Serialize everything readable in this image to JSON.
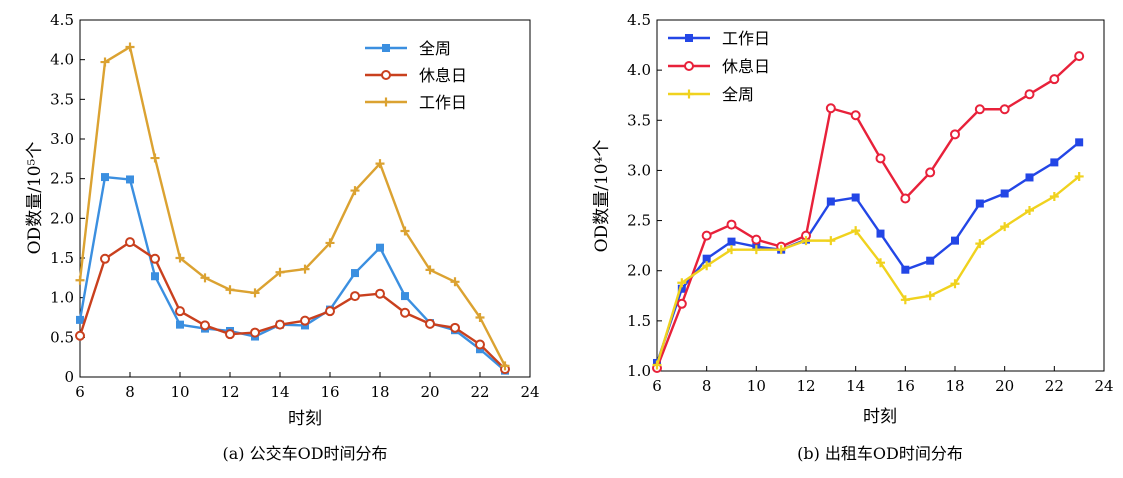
{
  "chart_data": [
    {
      "id": "a",
      "type": "line",
      "title": "",
      "caption": "(a) 公交车OD时间分布",
      "xlabel": "时刻",
      "ylabel": "OD数量/10⁵个",
      "xlim": [
        6,
        24
      ],
      "ylim": [
        0,
        4.5
      ],
      "xticks": [
        "6",
        "8",
        "10",
        "12",
        "14",
        "16",
        "18",
        "20",
        "22",
        "24"
      ],
      "yticks": [
        "0",
        "0.5",
        "1.0",
        "1.5",
        "2.0",
        "2.5",
        "3.0",
        "3.5",
        "4.0",
        "4.5"
      ],
      "grid": false,
      "legend_position": "top-right",
      "x": [
        6,
        7,
        8,
        9,
        10,
        11,
        12,
        13,
        14,
        15,
        16,
        17,
        18,
        19,
        20,
        21,
        22,
        23
      ],
      "series": [
        {
          "name": "全周",
          "color": "#3b8fe0",
          "marker": "square",
          "values": [
            0.72,
            2.52,
            2.49,
            1.27,
            0.66,
            0.61,
            0.58,
            0.51,
            0.66,
            0.65,
            0.85,
            1.31,
            1.63,
            1.02,
            0.68,
            0.59,
            0.35,
            0.08
          ]
        },
        {
          "name": "休息日",
          "color": "#c9401e",
          "marker": "circle",
          "values": [
            0.52,
            1.49,
            1.7,
            1.49,
            0.83,
            0.65,
            0.54,
            0.56,
            0.66,
            0.71,
            0.83,
            1.02,
            1.05,
            0.81,
            0.67,
            0.62,
            0.41,
            0.1
          ]
        },
        {
          "name": "工作日",
          "color": "#dba231",
          "marker": "plus",
          "values": [
            1.22,
            3.97,
            4.16,
            2.76,
            1.5,
            1.25,
            1.1,
            1.06,
            1.32,
            1.36,
            1.69,
            2.35,
            2.69,
            1.84,
            1.35,
            1.2,
            0.75,
            0.14
          ]
        }
      ]
    },
    {
      "id": "b",
      "type": "line",
      "title": "",
      "caption": "(b) 出租车OD时间分布",
      "xlabel": "时刻",
      "ylabel": "OD数量/10⁴个",
      "xlim": [
        6,
        24
      ],
      "ylim": [
        1.0,
        4.5
      ],
      "xticks": [
        "6",
        "8",
        "10",
        "12",
        "14",
        "16",
        "18",
        "20",
        "22",
        "24"
      ],
      "yticks": [
        "1.0",
        "1.5",
        "2.0",
        "2.5",
        "3.0",
        "3.5",
        "4.0",
        "4.5"
      ],
      "grid": false,
      "legend_position": "top-left",
      "x": [
        6,
        7,
        8,
        9,
        10,
        11,
        12,
        13,
        14,
        15,
        16,
        17,
        18,
        19,
        20,
        21,
        22,
        23
      ],
      "series": [
        {
          "name": "工作日",
          "color": "#2346e6",
          "marker": "square",
          "values": [
            1.08,
            1.82,
            2.12,
            2.29,
            2.24,
            2.21,
            2.31,
            2.69,
            2.73,
            2.37,
            2.01,
            2.1,
            2.3,
            2.67,
            2.77,
            2.93,
            3.08,
            3.28
          ]
        },
        {
          "name": "休息日",
          "color": "#e8213a",
          "marker": "circle",
          "values": [
            1.03,
            1.67,
            2.35,
            2.46,
            2.31,
            2.24,
            2.35,
            3.62,
            3.55,
            3.12,
            2.72,
            2.98,
            3.36,
            3.61,
            3.61,
            3.76,
            3.91,
            4.14
          ]
        },
        {
          "name": "全周",
          "color": "#f0d21e",
          "marker": "plus",
          "values": [
            1.06,
            1.88,
            2.05,
            2.21,
            2.21,
            2.21,
            2.3,
            2.3,
            2.4,
            2.08,
            1.71,
            1.75,
            1.87,
            2.27,
            2.44,
            2.6,
            2.74,
            2.94
          ]
        }
      ]
    }
  ]
}
